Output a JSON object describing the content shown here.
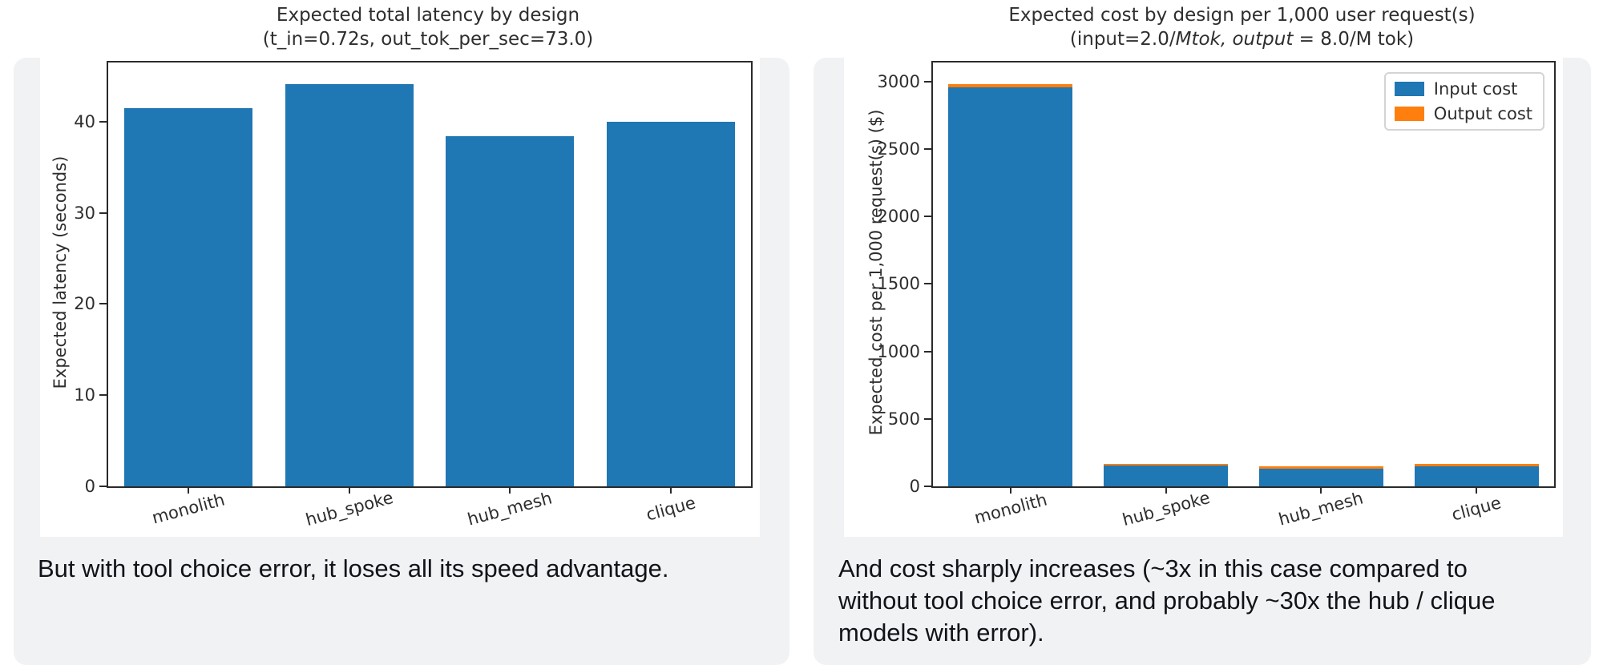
{
  "page": {
    "background": "#ffffff",
    "card_color": "#f1f2f4"
  },
  "captions": {
    "left": "But with tool choice error, it loses all its speed advantage.",
    "right": "And cost sharply increases (~3x in this case compared to without tool choice error, and probably ~30x the hub / clique models with error)."
  },
  "chart_data": [
    {
      "type": "bar",
      "title": "Expected total latency by design",
      "subtitle": "(t_in=0.72s, out_tok_per_sec=73.0)",
      "categories": [
        "monolith",
        "hub_spoke",
        "hub_mesh",
        "clique"
      ],
      "values": [
        41.5,
        44.1,
        38.4,
        40.0
      ],
      "xlabel": "",
      "ylabel": "Expected latency (seconds)",
      "yticks": [
        0,
        10,
        20,
        30,
        40
      ],
      "ylim": [
        0,
        46.5
      ],
      "bar_color": "#1f77b4",
      "grid": false,
      "legend_position": null
    },
    {
      "type": "bar",
      "stacked": true,
      "title": "Expected cost by design per 1,000 user request(s)",
      "subtitle_prefix": "(input=2.0/",
      "subtitle_italic": "Mtok, output",
      "subtitle_suffix": " = 8.0/M tok)",
      "categories": [
        "monolith",
        "hub_spoke",
        "hub_mesh",
        "clique"
      ],
      "series": [
        {
          "name": "Input cost",
          "color": "#1f77b4",
          "values": [
            2955,
            155,
            131,
            149
          ]
        },
        {
          "name": "Output cost",
          "color": "#ff7f0e",
          "values": [
            25,
            12,
            20,
            18
          ]
        }
      ],
      "xlabel": "",
      "ylabel": "Expected cost per 1,000 request(s) ($)",
      "yticks": [
        0,
        500,
        1000,
        1500,
        2000,
        2500,
        3000
      ],
      "ylim": [
        0,
        3140
      ],
      "grid": false,
      "legend_position": "upper right"
    }
  ]
}
